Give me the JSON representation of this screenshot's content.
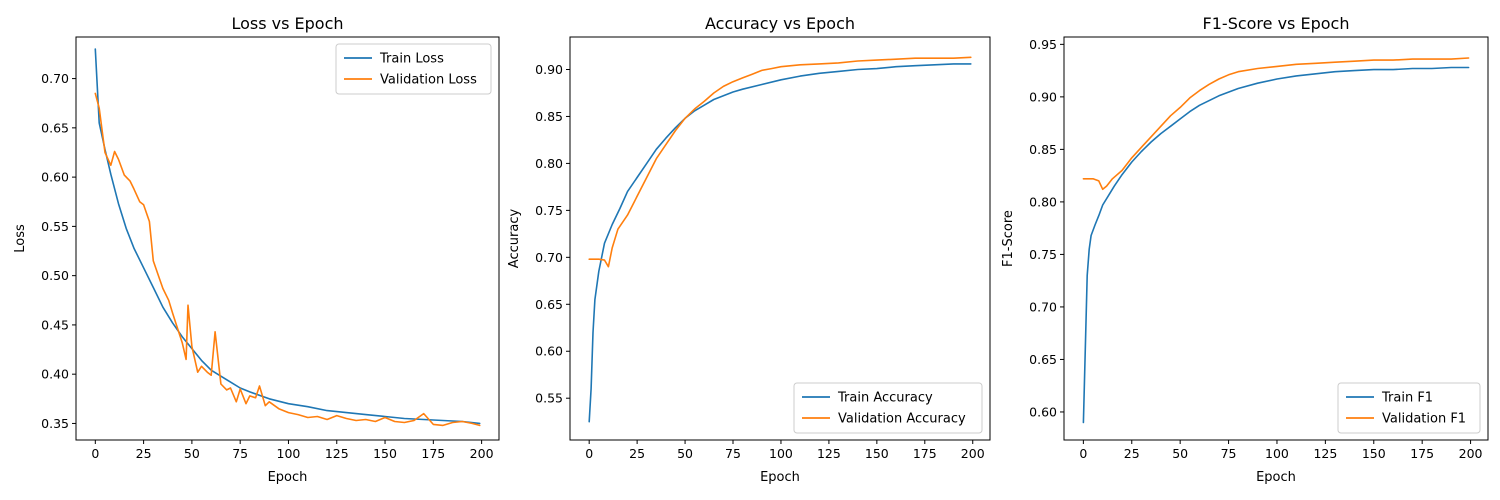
{
  "chart_data": [
    {
      "type": "line",
      "title": "Loss vs Epoch",
      "xlabel": "Epoch",
      "ylabel": "Loss",
      "xlim": [
        -10,
        209
      ],
      "ylim": [
        0.3332,
        0.7422
      ],
      "xticks": [
        0,
        25,
        50,
        75,
        100,
        125,
        150,
        175,
        200
      ],
      "yticks": [
        0.35,
        0.4,
        0.45,
        0.5,
        0.55,
        0.6,
        0.65,
        0.7
      ],
      "ytick_labels": [
        "0.35",
        "0.40",
        "0.45",
        "0.50",
        "0.55",
        "0.60",
        "0.65",
        "0.70"
      ],
      "legend": "top-right",
      "grid": false,
      "series": [
        {
          "name": "Train Loss",
          "color": "#1f77b4",
          "x": [
            0,
            2,
            5,
            8,
            12,
            16,
            20,
            25,
            30,
            35,
            40,
            45,
            50,
            55,
            60,
            65,
            70,
            75,
            80,
            90,
            100,
            110,
            120,
            130,
            140,
            150,
            160,
            170,
            180,
            190,
            199
          ],
          "y": [
            0.73,
            0.655,
            0.628,
            0.603,
            0.573,
            0.548,
            0.528,
            0.508,
            0.488,
            0.468,
            0.452,
            0.438,
            0.426,
            0.414,
            0.404,
            0.398,
            0.392,
            0.386,
            0.382,
            0.375,
            0.37,
            0.367,
            0.363,
            0.361,
            0.359,
            0.357,
            0.355,
            0.354,
            0.353,
            0.352,
            0.35
          ]
        },
        {
          "name": "Validation Loss",
          "color": "#ff7f0e",
          "x": [
            0,
            2,
            5,
            8,
            10,
            12,
            15,
            18,
            20,
            23,
            25,
            28,
            30,
            33,
            35,
            38,
            40,
            42,
            45,
            47,
            48,
            50,
            53,
            55,
            58,
            60,
            62,
            65,
            68,
            70,
            73,
            75,
            78,
            80,
            83,
            85,
            88,
            90,
            95,
            100,
            105,
            110,
            115,
            120,
            125,
            130,
            135,
            140,
            145,
            150,
            155,
            160,
            165,
            170,
            175,
            180,
            185,
            190,
            195,
            199
          ],
          "y": [
            0.685,
            0.67,
            0.625,
            0.612,
            0.626,
            0.618,
            0.602,
            0.596,
            0.588,
            0.575,
            0.572,
            0.555,
            0.515,
            0.498,
            0.487,
            0.475,
            0.462,
            0.45,
            0.432,
            0.415,
            0.47,
            0.428,
            0.402,
            0.408,
            0.402,
            0.399,
            0.443,
            0.39,
            0.384,
            0.386,
            0.372,
            0.385,
            0.37,
            0.378,
            0.376,
            0.388,
            0.368,
            0.372,
            0.365,
            0.361,
            0.359,
            0.356,
            0.357,
            0.354,
            0.358,
            0.355,
            0.353,
            0.354,
            0.352,
            0.356,
            0.352,
            0.351,
            0.353,
            0.36,
            0.349,
            0.348,
            0.351,
            0.352,
            0.35,
            0.348
          ]
        }
      ]
    },
    {
      "type": "line",
      "title": "Accuracy vs Epoch",
      "xlabel": "Epoch",
      "ylabel": "Accuracy",
      "xlim": [
        -10,
        209
      ],
      "ylim": [
        0.5055,
        0.9346
      ],
      "xticks": [
        0,
        25,
        50,
        75,
        100,
        125,
        150,
        175,
        200
      ],
      "yticks": [
        0.55,
        0.6,
        0.65,
        0.7,
        0.75,
        0.8,
        0.85,
        0.9
      ],
      "ytick_labels": [
        "0.55",
        "0.60",
        "0.65",
        "0.70",
        "0.75",
        "0.80",
        "0.85",
        "0.90"
      ],
      "legend": "bottom-right",
      "grid": false,
      "series": [
        {
          "name": "Train Accuracy",
          "color": "#1f77b4",
          "x": [
            0,
            1,
            2,
            3,
            5,
            8,
            12,
            16,
            20,
            25,
            30,
            35,
            40,
            45,
            50,
            55,
            60,
            65,
            70,
            75,
            80,
            90,
            100,
            110,
            120,
            130,
            140,
            150,
            160,
            170,
            180,
            190,
            199
          ],
          "y": [
            0.525,
            0.56,
            0.62,
            0.655,
            0.685,
            0.715,
            0.735,
            0.752,
            0.77,
            0.785,
            0.8,
            0.815,
            0.827,
            0.838,
            0.848,
            0.856,
            0.862,
            0.868,
            0.872,
            0.876,
            0.879,
            0.884,
            0.889,
            0.893,
            0.896,
            0.898,
            0.9,
            0.901,
            0.903,
            0.904,
            0.905,
            0.906,
            0.906
          ]
        },
        {
          "name": "Validation Accuracy",
          "color": "#ff7f0e",
          "x": [
            0,
            5,
            8,
            10,
            12,
            15,
            20,
            25,
            30,
            35,
            40,
            45,
            50,
            55,
            60,
            65,
            70,
            75,
            80,
            85,
            90,
            95,
            100,
            110,
            120,
            130,
            140,
            150,
            160,
            170,
            180,
            190,
            199
          ],
          "y": [
            0.698,
            0.698,
            0.697,
            0.69,
            0.71,
            0.73,
            0.745,
            0.765,
            0.785,
            0.805,
            0.82,
            0.835,
            0.848,
            0.858,
            0.866,
            0.875,
            0.882,
            0.887,
            0.891,
            0.895,
            0.899,
            0.901,
            0.903,
            0.905,
            0.906,
            0.907,
            0.909,
            0.91,
            0.911,
            0.912,
            0.912,
            0.912,
            0.913
          ]
        }
      ]
    },
    {
      "type": "line",
      "title": "F1-Score vs Epoch",
      "xlabel": "Epoch",
      "ylabel": "F1-Score",
      "xlim": [
        -10,
        209
      ],
      "ylim": [
        0.5733,
        0.957
      ],
      "xticks": [
        0,
        25,
        50,
        75,
        100,
        125,
        150,
        175,
        200
      ],
      "yticks": [
        0.6,
        0.65,
        0.7,
        0.75,
        0.8,
        0.85,
        0.9,
        0.95
      ],
      "ytick_labels": [
        "0.60",
        "0.65",
        "0.70",
        "0.75",
        "0.80",
        "0.85",
        "0.90",
        "0.95"
      ],
      "legend": "bottom-right",
      "grid": false,
      "series": [
        {
          "name": "Train F1",
          "color": "#1f77b4",
          "x": [
            0,
            1,
            2,
            3,
            4,
            6,
            8,
            10,
            13,
            16,
            20,
            25,
            30,
            35,
            40,
            45,
            50,
            55,
            60,
            70,
            80,
            90,
            100,
            110,
            120,
            130,
            140,
            150,
            160,
            170,
            180,
            190,
            199
          ],
          "y": [
            0.59,
            0.66,
            0.73,
            0.755,
            0.768,
            0.778,
            0.787,
            0.797,
            0.806,
            0.815,
            0.826,
            0.838,
            0.848,
            0.857,
            0.865,
            0.872,
            0.879,
            0.886,
            0.892,
            0.901,
            0.908,
            0.913,
            0.917,
            0.92,
            0.922,
            0.924,
            0.925,
            0.926,
            0.926,
            0.927,
            0.927,
            0.928,
            0.928
          ]
        },
        {
          "name": "Validation F1",
          "color": "#ff7f0e",
          "x": [
            0,
            5,
            8,
            10,
            12,
            15,
            20,
            25,
            30,
            35,
            40,
            45,
            50,
            55,
            60,
            65,
            70,
            75,
            80,
            90,
            100,
            110,
            120,
            130,
            140,
            150,
            160,
            170,
            180,
            190,
            199
          ],
          "y": [
            0.822,
            0.822,
            0.82,
            0.812,
            0.815,
            0.822,
            0.83,
            0.842,
            0.852,
            0.862,
            0.872,
            0.882,
            0.89,
            0.899,
            0.906,
            0.912,
            0.917,
            0.921,
            0.924,
            0.927,
            0.929,
            0.931,
            0.932,
            0.933,
            0.934,
            0.935,
            0.935,
            0.936,
            0.936,
            0.936,
            0.937
          ]
        }
      ]
    }
  ]
}
